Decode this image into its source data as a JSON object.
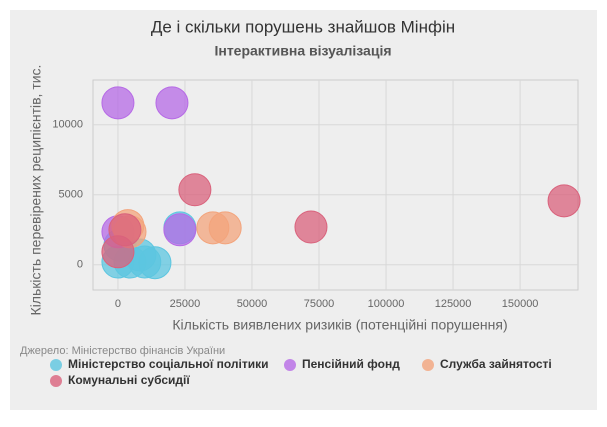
{
  "chart_data": {
    "type": "scatter",
    "title": "Де і скільки порушень знайшов Мінфін",
    "subtitle": "Інтерактивна візуалізація",
    "x_label": "Кількість виявлених ризиків (потенційні порушення)",
    "y_label": "Кількість перевірених реципієнтів, тис.",
    "source": "Джерело: Міністерство фінансів України",
    "xlim": [
      -9300,
      171600
    ],
    "xticks": [
      0,
      25000,
      50000,
      75000,
      100000,
      125000,
      150000
    ],
    "ylim": [
      -1800,
      13200
    ],
    "yticks": [
      0,
      5000,
      10000
    ],
    "grid": true,
    "legend": "bottom",
    "series": [
      {
        "name": "Міністерство соціальної політики",
        "color": "#5cc6e0",
        "x": [
          23100,
          750,
          8200,
          0,
          4500,
          10000,
          13800
        ],
        "y": [
          2640,
          1400,
          700,
          200,
          200,
          200,
          150
        ]
      },
      {
        "name": "Пенсійний фонд",
        "color": "#b66ae6",
        "x": [
          0,
          20150,
          23100,
          0
        ],
        "y": [
          11570,
          11570,
          2500,
          2360
        ]
      },
      {
        "name": "Служба зайнятості",
        "color": "#f3a47c",
        "x": [
          35400,
          40000,
          3700,
          4500
        ],
        "y": [
          2640,
          2640,
          2800,
          2360
        ]
      },
      {
        "name": "Комунальні субсидії",
        "color": "#d9627c",
        "x": [
          166400,
          72000,
          28700,
          0,
          2600
        ],
        "y": [
          4570,
          2700,
          5360,
          930,
          2500
        ]
      }
    ]
  }
}
